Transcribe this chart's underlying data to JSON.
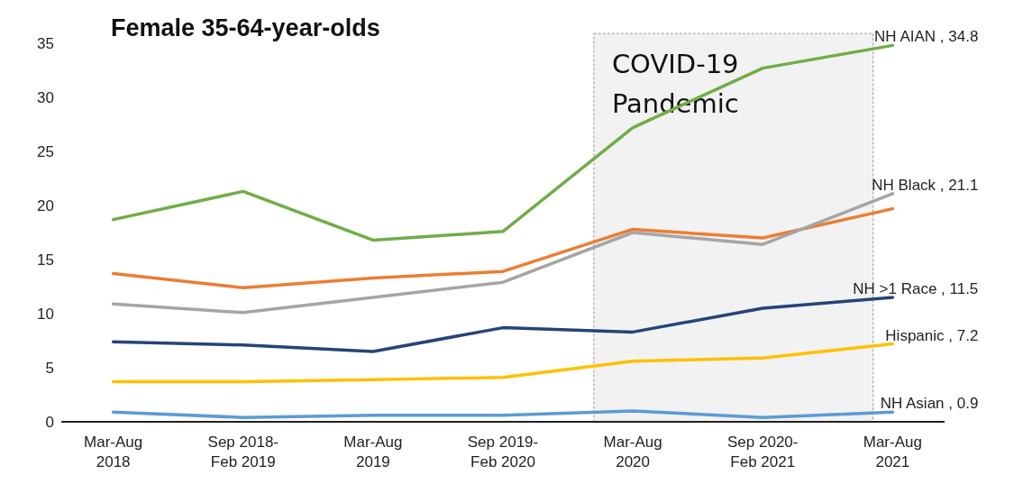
{
  "chart_data": {
    "type": "line",
    "title": "Female 35-64-year-olds",
    "categories": [
      "Mar-Aug\n2018",
      "Sep 2018-\nFeb 2019",
      "Mar-Aug\n2019",
      "Sep 2019-\nFeb 2020",
      "Mar-Aug\n2020",
      "Sep 2020-\nFeb 2021",
      "Mar-Aug\n2021"
    ],
    "series": [
      {
        "color": "#70ad47",
        "values": [
          18.7,
          21.3,
          16.8,
          17.6,
          27.2,
          32.7,
          34.8
        ],
        "value_labels": [
          null,
          null,
          null,
          null,
          null,
          null,
          "NH AIAN , 34.8"
        ]
      },
      {
        "color": "#ed7d31",
        "values": [
          13.7,
          12.4,
          13.3,
          13.9,
          17.8,
          17.0,
          19.7
        ]
      },
      {
        "color": "#a5a5a5",
        "values": [
          10.9,
          10.1,
          11.5,
          12.9,
          17.5,
          16.4,
          21.1
        ],
        "value_labels": [
          null,
          null,
          null,
          null,
          null,
          null,
          "NH Black , 21.1"
        ]
      },
      {
        "color": "#264478",
        "values": [
          7.4,
          7.1,
          6.5,
          8.7,
          8.3,
          10.5,
          11.5
        ],
        "value_labels": [
          null,
          null,
          null,
          null,
          null,
          null,
          "NH >1 Race , 11.5"
        ]
      },
      {
        "color": "#ffc000",
        "values": [
          3.7,
          3.7,
          3.9,
          4.1,
          5.6,
          5.9,
          7.2
        ],
        "value_labels": [
          null,
          null,
          null,
          null,
          null,
          null,
          "Hispanic , 7.2"
        ]
      },
      {
        "color": "#5b9bd5",
        "values": [
          0.9,
          0.4,
          0.6,
          0.6,
          1.0,
          0.4,
          0.9
        ],
        "value_labels": [
          null,
          null,
          null,
          null,
          null,
          null,
          "NH Asian , 0.9"
        ]
      }
    ],
    "ylim": [
      0,
      35
    ],
    "yticks": [
      0,
      5,
      10,
      15,
      20,
      25,
      30,
      35
    ],
    "bands": [
      {
        "axis": "x",
        "from": "Mar-Aug\n2020",
        "to": "Mar-Aug\n2021",
        "label": "COVID-19\nPandemic",
        "color": "#f2f2f2"
      }
    ],
    "grid": false,
    "legend": false,
    "marker": "none",
    "line_style": "solid"
  }
}
